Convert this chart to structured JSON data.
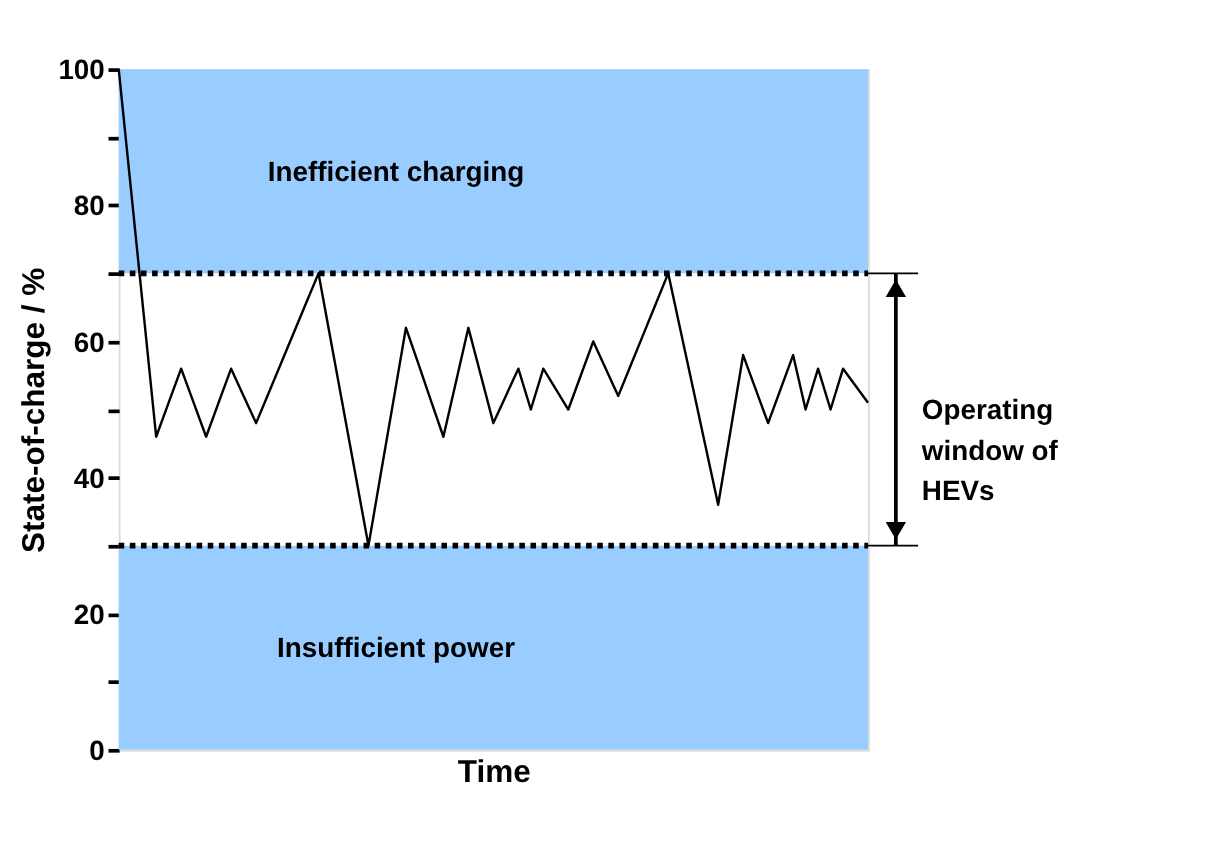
{
  "chart_data": {
    "type": "line",
    "xlabel": "Time",
    "ylabel": "State-of-charge / %",
    "categories": [
      null,
      null,
      null,
      null,
      null,
      null,
      null,
      null,
      null,
      null,
      null,
      null,
      null,
      null,
      null,
      null,
      null,
      null,
      null,
      null,
      null,
      null,
      null,
      null,
      null,
      null,
      null,
      null,
      null,
      null,
      null,
      null,
      null,
      null,
      null,
      null,
      null,
      null,
      null,
      null,
      null,
      null,
      null,
      null,
      null,
      null,
      null,
      null,
      null,
      null,
      null,
      null,
      null,
      null,
      null,
      null,
      null,
      null,
      null,
      null,
      null
    ],
    "series": [
      {
        "color": "#000000",
        "values": [
          100,
          82,
          64,
          46,
          51,
          56,
          51,
          46,
          51,
          56,
          52,
          48,
          52.4,
          56.8,
          61.2,
          65.6,
          70,
          60,
          50,
          40,
          30,
          40.7,
          51.3,
          62,
          56.7,
          51.3,
          46,
          54,
          62,
          55,
          48,
          52,
          56,
          50,
          56,
          53,
          50,
          55,
          60,
          56,
          52,
          56.5,
          61,
          65.5,
          70,
          61.5,
          53,
          44.5,
          36,
          47,
          58,
          53,
          48,
          53,
          58,
          50,
          56,
          50,
          56,
          53.5,
          51
        ]
      }
    ],
    "ylim": [
      0,
      100
    ],
    "yticks": [
      0,
      {
        "value": 10,
        "label": null
      },
      20,
      {
        "value": 30,
        "label": null
      },
      40,
      {
        "value": 50,
        "label": null
      },
      60,
      {
        "value": 70,
        "label": null
      },
      80,
      {
        "value": 90,
        "label": null
      },
      100
    ],
    "tick_labels": "y",
    "grid": false,
    "legend": false,
    "marker": "none",
    "line_style": "solid",
    "bands": [
      {
        "axis": "y",
        "from": 70,
        "to": 100,
        "label": "Inefficient charging",
        "color": "#99ccff"
      },
      {
        "axis": "y",
        "from": 0,
        "to": 30,
        "label": "Insufficient power",
        "color": "#99ccff"
      }
    ],
    "ref_lines": [
      {
        "axis": "y",
        "value": 70,
        "color": "#000000",
        "line_style": "dotted"
      },
      {
        "axis": "y",
        "value": 30,
        "color": "#000000",
        "line_style": "dotted"
      }
    ],
    "annotations": [
      "Operating window of HEVs"
    ]
  }
}
